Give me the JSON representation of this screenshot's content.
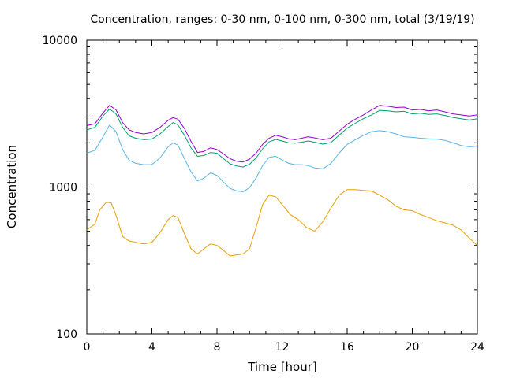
{
  "chart_data": {
    "type": "line",
    "title": "Concentration, ranges: 0-30 nm, 0-100 nm, 0-300 nm, total (3/19/19)",
    "xlabel": "Time [hour]",
    "ylabel": "Concentration",
    "xlim": [
      0,
      24
    ],
    "ylim": [
      100,
      10000
    ],
    "yscale": "log",
    "grid": false,
    "legend": "none",
    "x_ticks": [
      "0",
      "4",
      "8",
      "12",
      "16",
      "20",
      "24"
    ],
    "y_ticks": [
      "100",
      "1000",
      "10000"
    ],
    "series": [
      {
        "color": "#9400d3",
        "x": [
          0,
          0.5,
          1,
          1.4,
          1.8,
          2.2,
          2.6,
          3,
          3.5,
          4,
          4.5,
          5,
          5.3,
          5.6,
          6,
          6.4,
          6.8,
          7.2,
          7.6,
          8,
          8.4,
          8.8,
          9.2,
          9.6,
          10,
          10.4,
          10.8,
          11.2,
          11.6,
          12,
          12.4,
          12.8,
          13.2,
          13.6,
          14,
          14.5,
          15,
          15.5,
          16,
          16.5,
          17,
          17.5,
          18,
          18.5,
          19,
          19.5,
          20,
          20.5,
          21,
          21.5,
          22,
          22.5,
          23,
          23.5,
          24
        ],
        "y": [
          2620,
          2700,
          3200,
          3600,
          3350,
          2750,
          2450,
          2350,
          2300,
          2350,
          2550,
          2850,
          2970,
          2900,
          2500,
          2050,
          1720,
          1750,
          1850,
          1800,
          1680,
          1560,
          1500,
          1480,
          1550,
          1700,
          1950,
          2150,
          2250,
          2200,
          2130,
          2100,
          2150,
          2200,
          2160,
          2100,
          2150,
          2400,
          2680,
          2900,
          3100,
          3350,
          3600,
          3550,
          3480,
          3500,
          3350,
          3380,
          3300,
          3350,
          3250,
          3150,
          3100,
          3050,
          3100
        ]
      },
      {
        "color": "#009e73",
        "x": [
          0,
          0.5,
          1,
          1.4,
          1.8,
          2.2,
          2.6,
          3,
          3.5,
          4,
          4.5,
          5,
          5.3,
          5.6,
          6,
          6.4,
          6.8,
          7.2,
          7.6,
          8,
          8.4,
          8.8,
          9.2,
          9.6,
          10,
          10.4,
          10.8,
          11.2,
          11.6,
          12,
          12.4,
          12.8,
          13.2,
          13.6,
          14,
          14.5,
          15,
          15.5,
          16,
          16.5,
          17,
          17.5,
          18,
          18.5,
          19,
          19.5,
          20,
          20.5,
          21,
          21.5,
          22,
          22.5,
          23,
          23.5,
          24
        ],
        "y": [
          2450,
          2550,
          3050,
          3400,
          3150,
          2550,
          2230,
          2150,
          2100,
          2120,
          2300,
          2580,
          2750,
          2650,
          2250,
          1850,
          1620,
          1640,
          1720,
          1700,
          1560,
          1440,
          1390,
          1370,
          1430,
          1580,
          1820,
          2030,
          2110,
          2060,
          2000,
          1990,
          2020,
          2060,
          2020,
          1960,
          2010,
          2250,
          2520,
          2720,
          2920,
          3100,
          3330,
          3300,
          3250,
          3280,
          3150,
          3180,
          3120,
          3150,
          3070,
          2980,
          2920,
          2860,
          2920
        ]
      },
      {
        "color": "#56b4e9",
        "x": [
          0,
          0.5,
          1,
          1.4,
          1.8,
          2.2,
          2.6,
          3,
          3.5,
          4,
          4.5,
          5,
          5.3,
          5.6,
          6,
          6.4,
          6.8,
          7.2,
          7.6,
          8,
          8.4,
          8.8,
          9.2,
          9.6,
          10,
          10.4,
          10.8,
          11.2,
          11.6,
          12,
          12.4,
          12.8,
          13.2,
          13.6,
          14,
          14.5,
          15,
          15.5,
          16,
          16.5,
          17,
          17.5,
          18,
          18.5,
          19,
          19.5,
          20,
          20.5,
          21,
          21.5,
          22,
          22.5,
          23,
          23.5,
          24
        ],
        "y": [
          1700,
          1780,
          2200,
          2650,
          2380,
          1800,
          1520,
          1450,
          1420,
          1420,
          1580,
          1880,
          2000,
          1930,
          1560,
          1270,
          1100,
          1150,
          1250,
          1200,
          1080,
          980,
          940,
          930,
          990,
          1150,
          1400,
          1590,
          1620,
          1530,
          1450,
          1420,
          1420,
          1400,
          1350,
          1330,
          1450,
          1700,
          1950,
          2100,
          2250,
          2380,
          2420,
          2380,
          2300,
          2200,
          2180,
          2150,
          2130,
          2120,
          2080,
          2000,
          1920,
          1880,
          1900
        ]
      },
      {
        "color": "#e69f00",
        "x": [
          0,
          0.5,
          0.8,
          1.2,
          1.5,
          1.8,
          2.2,
          2.6,
          3,
          3.5,
          4,
          4.5,
          5,
          5.3,
          5.6,
          6,
          6.4,
          6.8,
          7.2,
          7.6,
          8,
          8.4,
          8.8,
          9.2,
          9.6,
          10,
          10.4,
          10.8,
          11.2,
          11.6,
          12,
          12.5,
          13,
          13.5,
          14,
          14.5,
          15,
          15.5,
          16,
          16.5,
          17,
          17.5,
          18,
          18.5,
          19,
          19.5,
          20,
          20.5,
          21,
          21.5,
          22,
          22.5,
          23,
          23.5,
          24
        ],
        "y": [
          510,
          560,
          700,
          790,
          780,
          640,
          460,
          430,
          420,
          410,
          420,
          490,
          600,
          640,
          620,
          480,
          380,
          350,
          380,
          410,
          400,
          370,
          340,
          345,
          350,
          380,
          530,
          760,
          880,
          860,
          760,
          650,
          600,
          530,
          500,
          580,
          720,
          880,
          960,
          960,
          950,
          940,
          880,
          820,
          740,
          700,
          690,
          650,
          620,
          590,
          570,
          550,
          510,
          450,
          400
        ]
      }
    ]
  }
}
